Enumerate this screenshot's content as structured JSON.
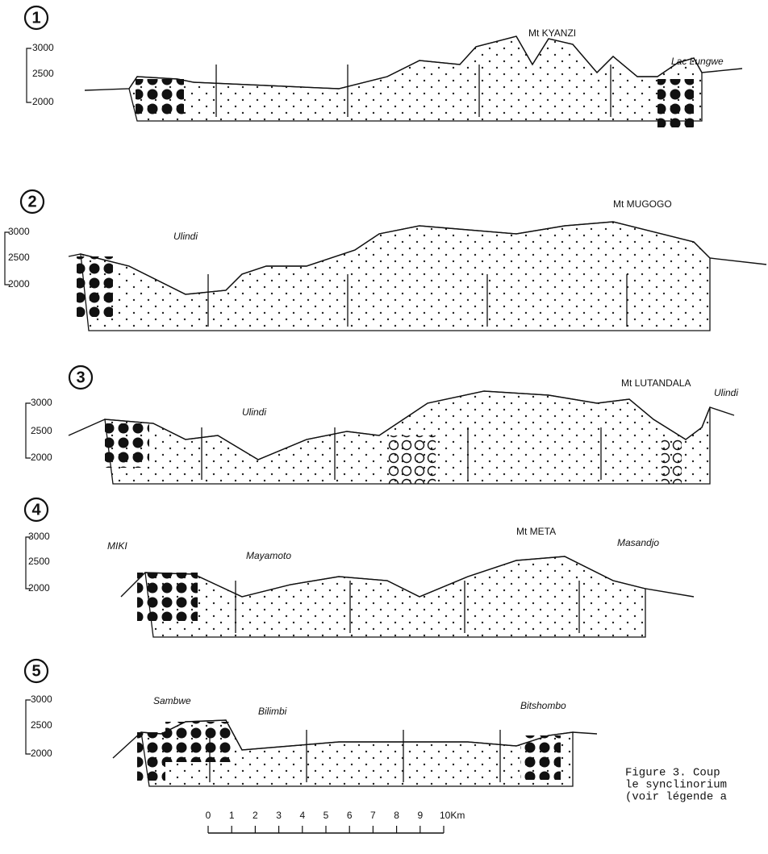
{
  "sections": [
    {
      "number": "1",
      "elevations": [
        "3000",
        "2500",
        "2000"
      ],
      "places": [
        "Mt KYANZI",
        "Lac Lungwe"
      ]
    },
    {
      "number": "2",
      "elevations": [
        "3000",
        "2500",
        "2000"
      ],
      "places": [
        "Ulindi",
        "Mt MUGOGO"
      ]
    },
    {
      "number": "3",
      "elevations": [
        "3000",
        "2500",
        "2000"
      ],
      "places": [
        "Ulindi",
        "Mt LUTANDALA",
        "Ulindi"
      ]
    },
    {
      "number": "4",
      "elevations": [
        "3000",
        "2500",
        "2000"
      ],
      "places": [
        "MIKI",
        "Mayamoto",
        "Mt META",
        "Masandjo"
      ]
    },
    {
      "number": "5",
      "elevations": [
        "3000",
        "2500",
        "2000"
      ],
      "places": [
        "Sambwe",
        "Bilimbi",
        "Bitshombo"
      ]
    }
  ],
  "scale": {
    "ticks": [
      "0",
      "1",
      "2",
      "3",
      "4",
      "5",
      "6",
      "7",
      "8",
      "9",
      "10Km"
    ]
  },
  "caption": [
    "Figure 3.  Coup",
    "le synclinorium",
    "(voir légende a"
  ]
}
